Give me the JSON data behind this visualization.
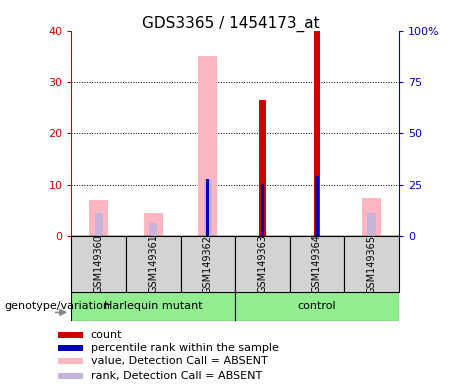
{
  "title": "GDS3365 / 1454173_at",
  "samples": [
    "GSM149360",
    "GSM149361",
    "GSM149362",
    "GSM149363",
    "GSM149364",
    "GSM149365"
  ],
  "ylim_left": [
    0,
    40
  ],
  "ylim_right": [
    0,
    100
  ],
  "yticks_left": [
    0,
    10,
    20,
    30,
    40
  ],
  "yticks_right": [
    0,
    25,
    50,
    75,
    100
  ],
  "ytick_labels_left": [
    "0",
    "10",
    "20",
    "30",
    "40"
  ],
  "ytick_labels_right": [
    "0",
    "25",
    "50",
    "75",
    "100%"
  ],
  "count_values": [
    0,
    0,
    0,
    26.5,
    40.0,
    0
  ],
  "rank_values": [
    0,
    0,
    11.2,
    10.1,
    11.8,
    0
  ],
  "absent_value_vals": [
    7.0,
    4.5,
    35.0,
    0,
    0,
    7.5
  ],
  "absent_rank_vals": [
    4.5,
    2.5,
    11.2,
    0,
    0,
    4.5
  ],
  "count_color": "#CC0000",
  "rank_color": "#0000BB",
  "absent_value_color": "#FFB6C1",
  "absent_rank_color": "#C8B4D8",
  "harlequin_color": "#90EE90",
  "control_color": "#90EE90",
  "sample_box_color": "#D3D3D3",
  "grid_color": "#000000",
  "legend_items": [
    {
      "label": "count",
      "color": "#CC0000"
    },
    {
      "label": "percentile rank within the sample",
      "color": "#0000BB"
    },
    {
      "label": "value, Detection Call = ABSENT",
      "color": "#FFB6C1"
    },
    {
      "label": "rank, Detection Call = ABSENT",
      "color": "#C8B4D8"
    }
  ],
  "left_axis_color": "#CC0000",
  "right_axis_color": "#0000BB",
  "title_fontsize": 11,
  "tick_fontsize": 8,
  "label_fontsize": 7.5,
  "sample_fontsize": 7,
  "group_fontsize": 8,
  "legend_fontsize": 8
}
